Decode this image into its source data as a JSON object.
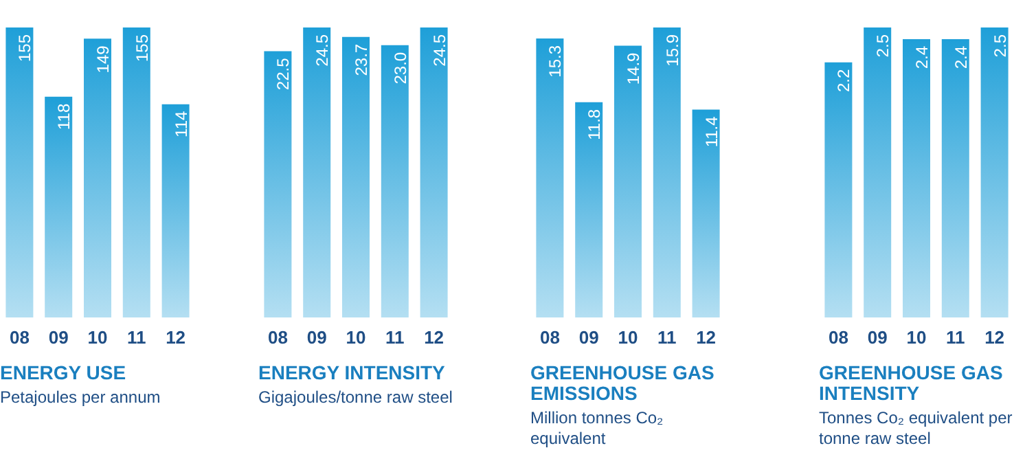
{
  "chart_data": [
    {
      "type": "bar",
      "title": "ENERGY USE",
      "subtitle": "Petajoules per annum",
      "categories": [
        "08",
        "09",
        "10",
        "11",
        "12"
      ],
      "values": [
        155,
        118,
        149,
        155,
        114
      ],
      "color": "#1e9fd8",
      "data_labels": true
    },
    {
      "type": "bar",
      "title": "ENERGY INTENSITY",
      "subtitle": "Gigajoules/tonne raw steel",
      "categories": [
        "08",
        "09",
        "10",
        "11",
        "12"
      ],
      "values": [
        22.5,
        24.5,
        23.7,
        23.0,
        24.5
      ],
      "color": "#1e9fd8",
      "value_labels": [
        "22.5",
        "24.5",
        "23.7",
        "23.0",
        "24.5"
      ]
    },
    {
      "type": "bar",
      "title": "GREENHOUSE GAS EMISSIONS",
      "subtitle": "Million tonnes Co₂ equivalent",
      "categories": [
        "08",
        "09",
        "10",
        "11",
        "12"
      ],
      "values": [
        15.3,
        11.8,
        14.9,
        15.9,
        11.4
      ],
      "color": "#1e9fd8",
      "data_labels": true
    },
    {
      "type": "bar",
      "title": "GREENHOUSE GAS INTENSITY",
      "subtitle": "Tonnes Co₂ equivalent per tonne raw steel",
      "categories": [
        "08",
        "09",
        "10",
        "11",
        "12"
      ],
      "values": [
        2.2,
        2.5,
        2.4,
        2.4,
        2.5
      ],
      "color": "#1e9fd8",
      "data_labels": true
    }
  ]
}
